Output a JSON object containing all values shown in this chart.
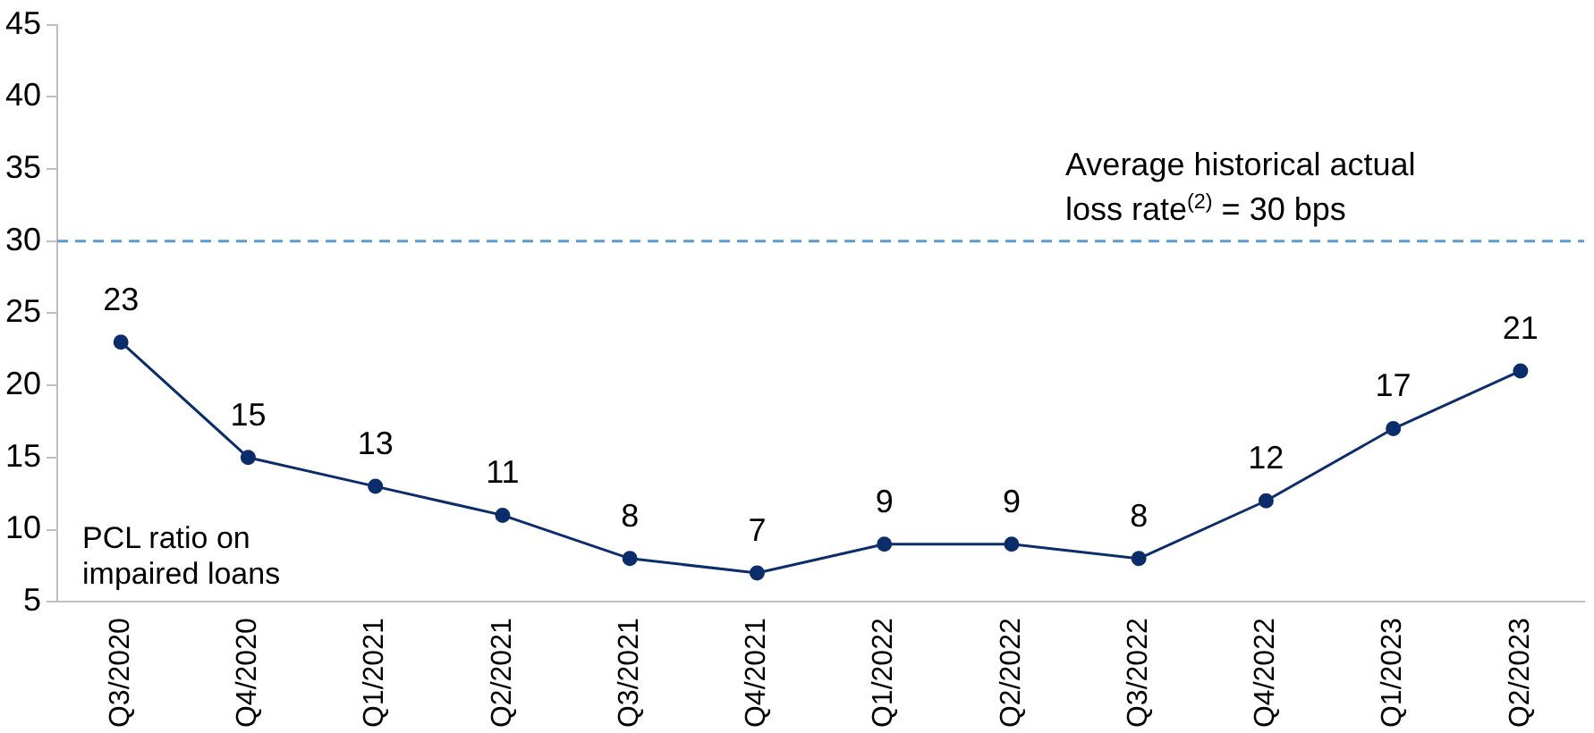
{
  "chart_data": {
    "type": "line",
    "categories": [
      "Q3/2020",
      "Q4/2020",
      "Q1/2021",
      "Q2/2021",
      "Q3/2021",
      "Q4/2021",
      "Q1/2022",
      "Q2/2022",
      "Q3/2022",
      "Q4/2022",
      "Q1/2023",
      "Q2/2023"
    ],
    "series": [
      {
        "name": "PCL ratio on impaired loans",
        "color": "#0b2d6b",
        "values": [
          23,
          15,
          13,
          11,
          8,
          7,
          9,
          9,
          8,
          12,
          17,
          21
        ]
      }
    ],
    "ylim": [
      5,
      45
    ],
    "yticks": [
      5,
      10,
      15,
      20,
      25,
      30,
      35,
      40,
      45
    ],
    "ref_lines": [
      {
        "axis": "y",
        "value": 30,
        "label": "Average historical actual loss rate$^{(2)}$ = 30 bps",
        "color": "#5b9bd5",
        "line_style": "dashed"
      }
    ],
    "data_labels": true,
    "grid": false,
    "legend": false,
    "marker": "circle",
    "line_style": "solid"
  }
}
